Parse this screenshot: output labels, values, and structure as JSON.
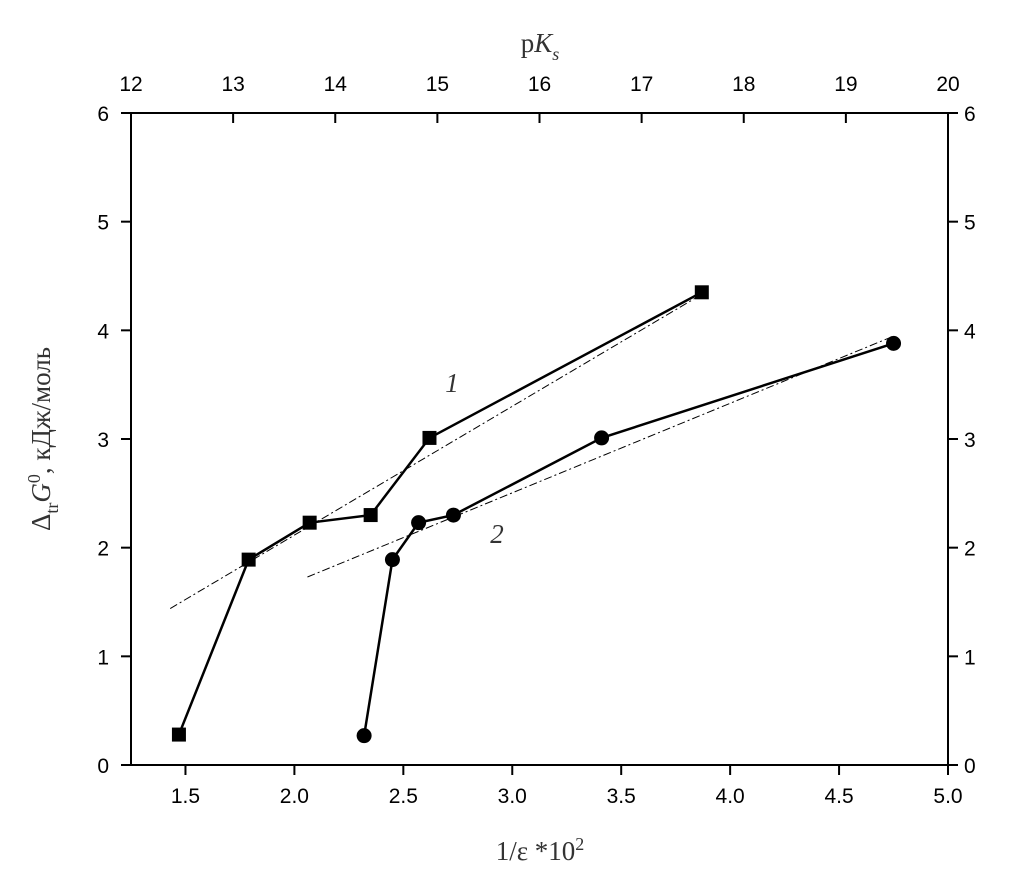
{
  "chart_data": {
    "type": "line",
    "x_label": [
      "1/ε *10",
      "2"
    ],
    "x2_label": [
      "p",
      "K",
      "s"
    ],
    "y_label": [
      "Δ",
      "tr",
      "G",
      "0",
      ", кДж/моль"
    ],
    "xlim": [
      1.25,
      5.0
    ],
    "xticks": [
      1.5,
      {
        "value": 2,
        "label": "2.0"
      },
      2.5,
      {
        "value": 3,
        "label": "3.0"
      },
      3.5,
      {
        "value": 4,
        "label": "4.0"
      },
      4.5,
      {
        "value": 5,
        "label": "5.0"
      }
    ],
    "x2lim": [
      12,
      20
    ],
    "x2ticks": [
      12,
      13,
      14,
      15,
      16,
      17,
      18,
      19,
      20
    ],
    "ylim": [
      0,
      6
    ],
    "yticks": [
      0,
      1,
      2,
      3,
      4,
      5,
      6
    ],
    "y2lim": [
      0,
      6
    ],
    "y2ticks": [
      0,
      1,
      2,
      3,
      4,
      5,
      6
    ],
    "series": [
      {
        "name": "1",
        "marker": "square",
        "color": "#000000",
        "x": [
          1.47,
          1.79,
          2.07,
          2.35,
          2.62,
          3.87
        ],
        "values": [
          0.28,
          1.89,
          2.23,
          2.3,
          3.01,
          4.35
        ]
      },
      {
        "name": "2",
        "marker": "circle",
        "color": "#000000",
        "x": [
          2.32,
          2.45,
          2.57,
          2.73,
          3.41,
          4.75
        ],
        "values": [
          0.27,
          1.89,
          2.23,
          2.3,
          3.01,
          3.88
        ]
      }
    ],
    "fit_lines": [
      {
        "x": [
          1.43,
          3.86
        ],
        "values": [
          1.44,
          4.32
        ]
      },
      {
        "x": [
          2.06,
          4.73
        ],
        "values": [
          1.73,
          3.93
        ]
      }
    ]
  }
}
